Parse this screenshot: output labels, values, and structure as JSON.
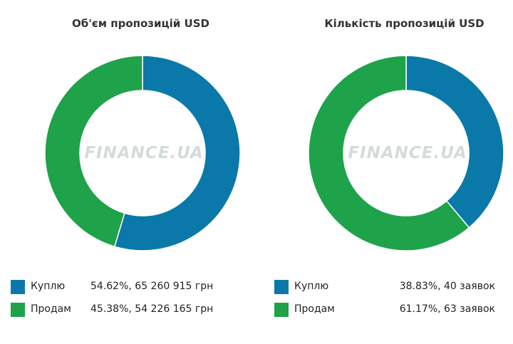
{
  "chart_data": [
    {
      "type": "pie",
      "title": "Об'єм пропозицій USD",
      "watermark": "FINANCE.UA",
      "categories": [
        "Куплю",
        "Продам"
      ],
      "values": [
        54.62,
        45.38
      ],
      "colors": [
        "#0a79a9",
        "#1ea24a"
      ],
      "legend": [
        {
          "label": "Куплю",
          "value_text": "54.62%, 65 260 915 грн"
        },
        {
          "label": "Продам",
          "value_text": "45.38%, 54 226 165 грн"
        }
      ],
      "legend_position": "bottom"
    },
    {
      "type": "pie",
      "title": "Кількість пропозицій USD",
      "watermark": "FINANCE.UA",
      "categories": [
        "Куплю",
        "Продам"
      ],
      "values": [
        38.83,
        61.17
      ],
      "colors": [
        "#0a79a9",
        "#1ea24a"
      ],
      "legend": [
        {
          "label": "Куплю",
          "value_text": "38.83%, 40 заявок"
        },
        {
          "label": "Продам",
          "value_text": "61.17%, 63 заявок"
        }
      ],
      "legend_position": "bottom"
    }
  ]
}
